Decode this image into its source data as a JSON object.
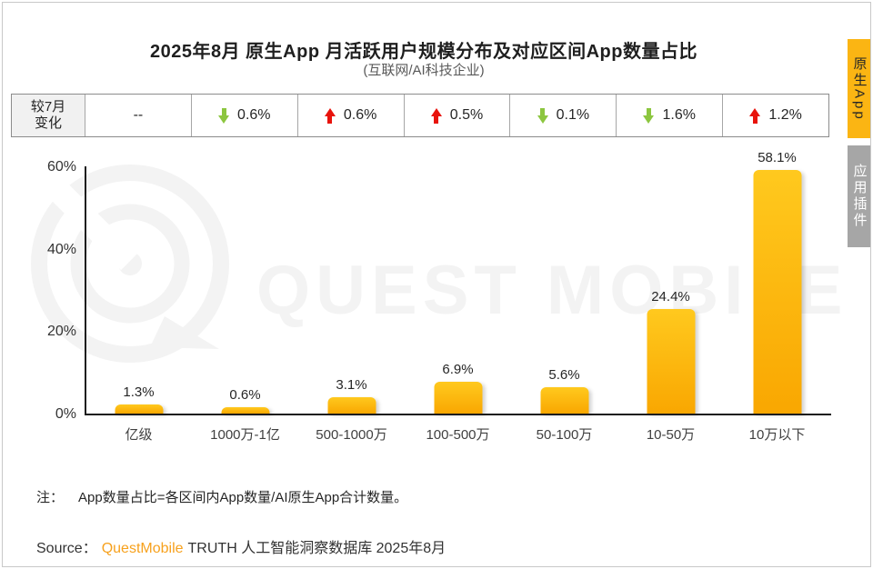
{
  "page": {
    "title": "2025年8月 原生App 月活跃用户规模分布及对应区间App数量占比",
    "subtitle": "(互联网/AI科技企业)",
    "note_label": "注：",
    "note_text": "App数量占比=各区间内App数量/AI原生App合计数量。",
    "source_label": "Source：",
    "source_brand": "QuestMobile",
    "source_rest": "TRUTH 人工智能洞察数据库 2025年8月",
    "watermark_text": "QUEST MOBILE"
  },
  "change_row": {
    "header_line1": "较7月",
    "header_line2": "变化",
    "cells": [
      {
        "dir": "none",
        "text": "--"
      },
      {
        "dir": "down",
        "text": "0.6%"
      },
      {
        "dir": "up",
        "text": "0.6%"
      },
      {
        "dir": "up",
        "text": "0.5%"
      },
      {
        "dir": "down",
        "text": "0.1%"
      },
      {
        "dir": "down",
        "text": "1.6%"
      },
      {
        "dir": "up",
        "text": "1.2%"
      }
    ]
  },
  "side_tabs": [
    {
      "label": "原生App",
      "active": true
    },
    {
      "label": "应用插件",
      "active": false
    }
  ],
  "chart_data": {
    "type": "bar",
    "title": "2025年8月 原生App 月活跃用户规模分布及对应区间App数量占比",
    "subtitle": "(互联网/AI科技企业)",
    "categories": [
      "亿级",
      "1000万-1亿",
      "500-1000万",
      "100-500万",
      "50-100万",
      "10-50万",
      "10万以下"
    ],
    "values": [
      1.3,
      0.6,
      3.1,
      6.9,
      5.6,
      24.4,
      58.1
    ],
    "value_labels": [
      "1.3%",
      "0.6%",
      "3.1%",
      "6.9%",
      "5.6%",
      "24.4%",
      "58.1%"
    ],
    "change_vs_july": [
      "--",
      "-0.6%",
      "+0.6%",
      "+0.5%",
      "-0.1%",
      "-1.6%",
      "+1.2%"
    ],
    "xlabel": "",
    "ylabel": "",
    "ylim": [
      0,
      60
    ],
    "yticks": [
      "0%",
      "20%",
      "40%",
      "60%"
    ],
    "grid": false,
    "legend": null,
    "bar_color_top": "#FFC91E",
    "bar_color_bottom": "#F9A701"
  },
  "colors": {
    "accent_orange": "#FBB513",
    "tab_gray": "#A6A6A6",
    "arrow_up_red": "#E8130C",
    "arrow_down_green": "#8CC63F",
    "brand_orange": "#F7A11D",
    "watermark_gray": "#F3F3F3"
  }
}
